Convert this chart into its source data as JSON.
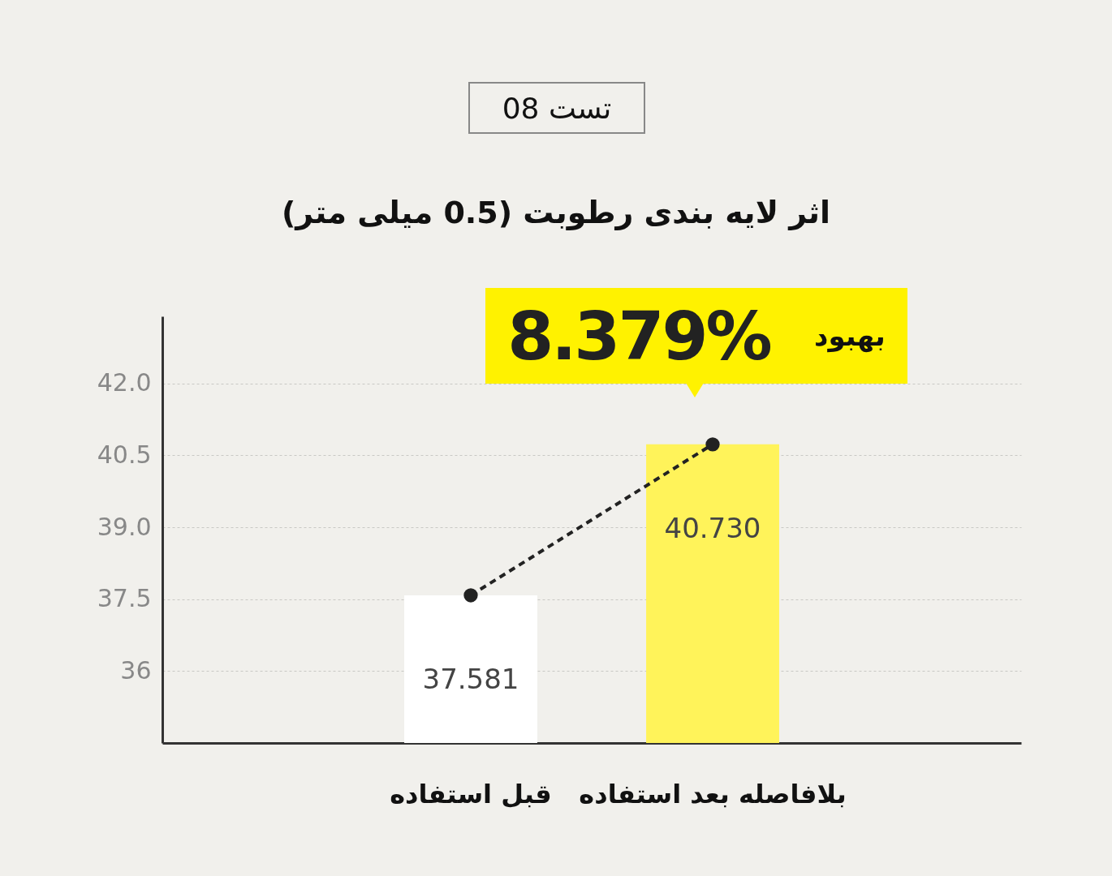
{
  "chart_data": {
    "type": "bar",
    "subtitle": "تست 08",
    "title": "اثر لایه بندی رطوبت (0.5 میلی متر)",
    "categories": [
      "قبل استفاده",
      "بلافاصله بعد استفاده"
    ],
    "series": [
      {
        "colors": [
          "#ffffff",
          "#fff35a"
        ],
        "values": [
          37.581,
          40.73
        ],
        "value_labels": [
          "37.581",
          "40.730"
        ]
      },
      {
        "type": "line",
        "color": "#222222",
        "values": [
          37.58,
          40.73
        ]
      }
    ],
    "marker": "circle",
    "line_style": "dashed",
    "ylim": [
      34.5,
      43.4
    ],
    "yticks": [
      36,
      {
        "value": 37.5,
        "label": "37.5"
      },
      {
        "value": 39,
        "label": "39.0"
      },
      {
        "value": 40.5,
        "label": "40.5"
      },
      {
        "value": 42,
        "label": "42.0"
      }
    ],
    "grid": "y",
    "annotations": [
      "8.379%",
      "بهبود"
    ]
  }
}
